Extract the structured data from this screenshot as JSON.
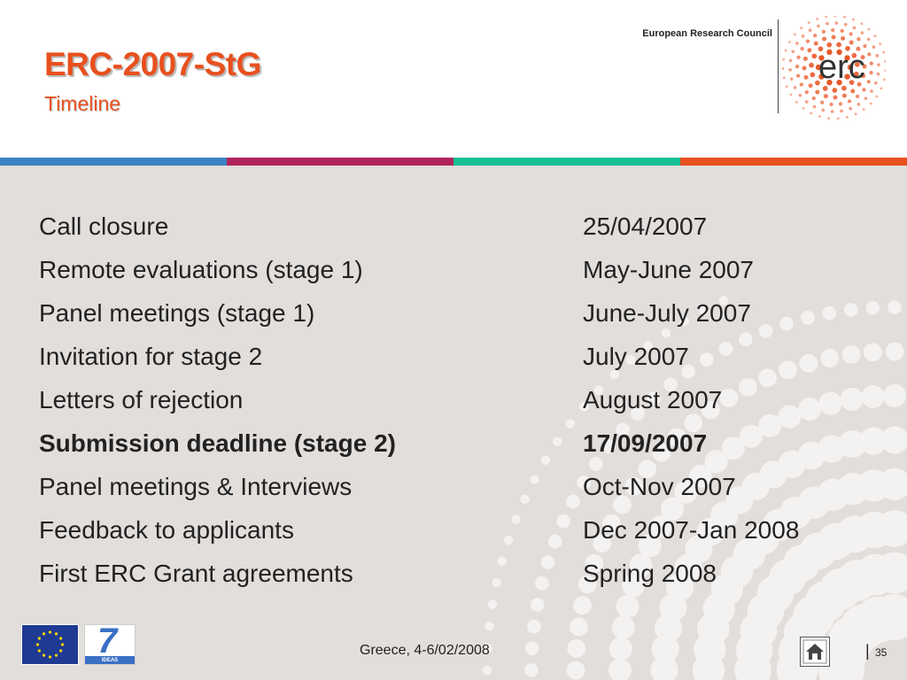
{
  "header": {
    "title": "ERC-2007-StG",
    "subtitle": "Timeline",
    "org_name": "European Research Council",
    "logo_text": "erc"
  },
  "colors": {
    "accent": "#e8501e",
    "stripe": [
      "#3a82c4",
      "#b0245b",
      "#17bf95",
      "#e8501e"
    ],
    "background": "#e2dedc"
  },
  "timeline": [
    {
      "label": "Call closure",
      "date": "25/04/2007",
      "bold": false
    },
    {
      "label": "Remote evaluations (stage 1)",
      "date": "May-June 2007",
      "bold": false
    },
    {
      "label": "Panel meetings (stage 1)",
      "date": "June-July 2007",
      "bold": false
    },
    {
      "label": "Invitation for stage 2",
      "date": "July 2007",
      "bold": false
    },
    {
      "label": "Letters of rejection",
      "date": "August 2007",
      "bold": false
    },
    {
      "label": "Submission deadline (stage 2)",
      "date": "17/09/2007",
      "bold": true
    },
    {
      "label": "Panel meetings & Interviews",
      "date": "Oct-Nov 2007",
      "bold": false
    },
    {
      "label": "Feedback to applicants",
      "date": "Dec 2007-Jan 2008",
      "bold": false
    },
    {
      "label": "First ERC Grant agreements",
      "date": "Spring 2008",
      "bold": false
    }
  ],
  "footer": {
    "event": "Greece, 4-6/02/2008",
    "separator": "|",
    "page_number": "35",
    "fp7_caption": "IDEAS",
    "fp7_number": "7",
    "home_icon": "home-icon",
    "eu_icon": "eu-flag-icon"
  }
}
